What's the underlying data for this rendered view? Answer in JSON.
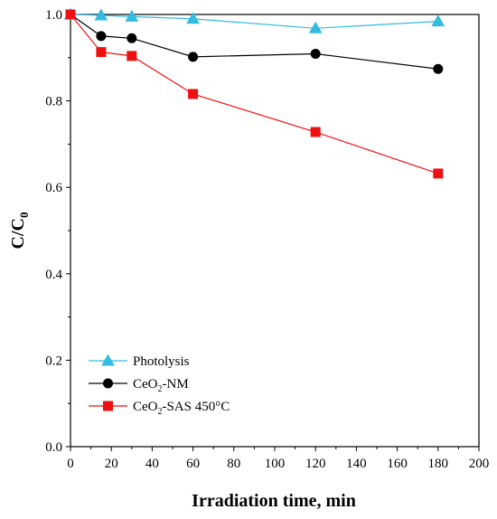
{
  "chart_data": {
    "type": "line",
    "xlabel": "Irradiation time, min",
    "ylabel": {
      "main": "C/C",
      "sub": "0"
    },
    "xlim": [
      0,
      200
    ],
    "ylim": [
      0.0,
      1.0
    ],
    "x_ticks": [
      "0",
      "20",
      "40",
      "60",
      "80",
      "100",
      "120",
      "140",
      "160",
      "180",
      "200"
    ],
    "y_ticks": [
      "0.0",
      "0.2",
      "0.4",
      "0.6",
      "0.8",
      "1.0"
    ],
    "grid": false,
    "legend_position": "bottom-left",
    "series": [
      {
        "name": "Photolysis",
        "label_parts": {
          "pre": "Photolysis",
          "sub": "",
          "post": ""
        },
        "marker": "triangle",
        "color": "#33bbe0",
        "x": [
          0,
          15,
          30,
          60,
          120,
          180
        ],
        "y": [
          1.0,
          0.998,
          0.995,
          0.99,
          0.968,
          0.984
        ]
      },
      {
        "name": "CeO2-NM",
        "label_parts": {
          "pre": "CeO",
          "sub": "2",
          "post": "-NM"
        },
        "marker": "circle",
        "color": "#000000",
        "x": [
          0,
          15,
          30,
          60,
          120,
          180
        ],
        "y": [
          1.0,
          0.95,
          0.945,
          0.902,
          0.909,
          0.874
        ]
      },
      {
        "name": "CeO2-SAS 450°C",
        "label_parts": {
          "pre": "CeO",
          "sub": "2",
          "post": "-SAS 450°C"
        },
        "marker": "square",
        "color": "#ee1111",
        "x": [
          0,
          15,
          30,
          60,
          120,
          180
        ],
        "y": [
          1.0,
          0.913,
          0.904,
          0.816,
          0.728,
          0.632
        ]
      }
    ]
  }
}
